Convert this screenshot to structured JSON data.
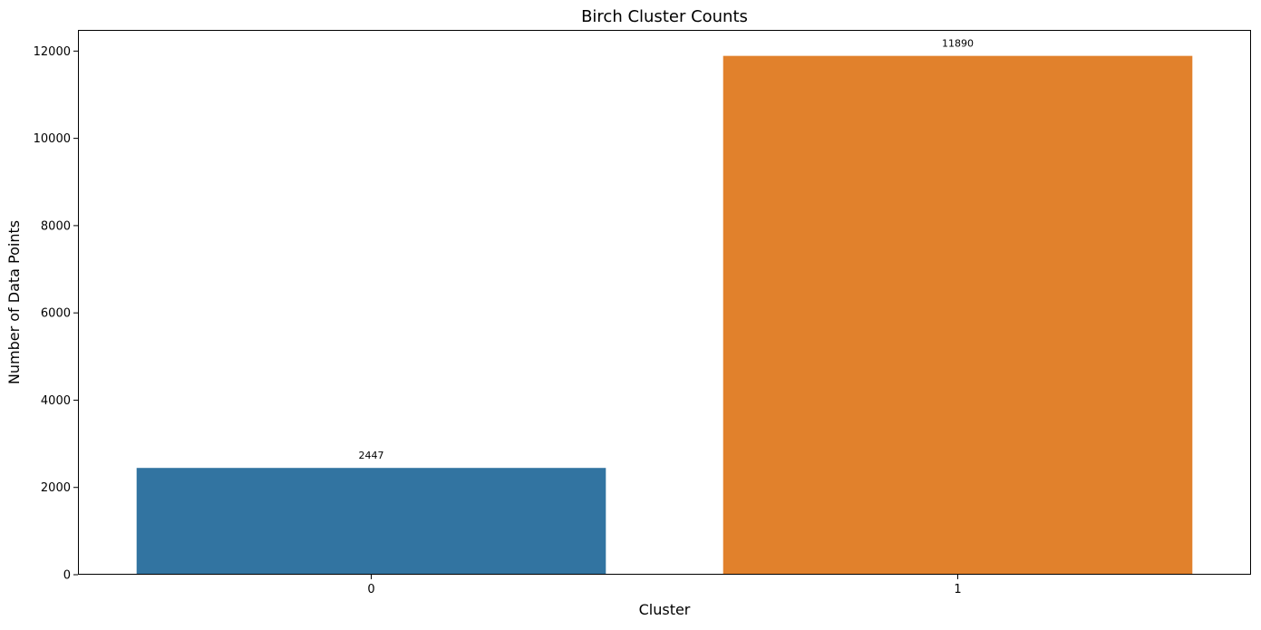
{
  "chart_data": {
    "type": "bar",
    "title": "Birch Cluster Counts",
    "xlabel": "Cluster",
    "ylabel": "Number of Data Points",
    "categories": [
      "0",
      "1"
    ],
    "values": [
      2447,
      11890
    ],
    "data_labels": [
      "2447",
      "11890"
    ],
    "colors": [
      "#3274a1",
      "#e1812c"
    ],
    "ylim": [
      0,
      12485
    ],
    "yticks": [
      0,
      2000,
      4000,
      6000,
      8000,
      10000,
      12000
    ],
    "ytick_labels": [
      "0",
      "2000",
      "4000",
      "6000",
      "8000",
      "10000",
      "12000"
    ],
    "grid": false,
    "legend": "none"
  }
}
